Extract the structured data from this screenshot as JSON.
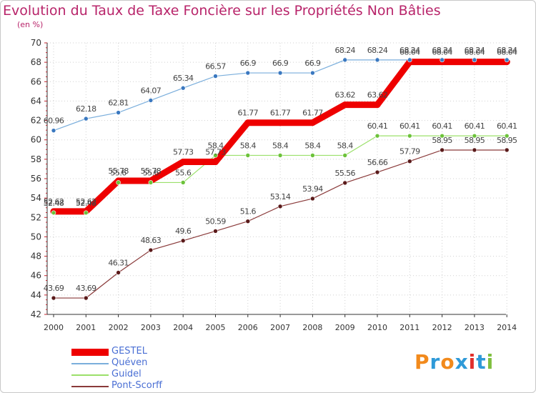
{
  "title": "Evolution du Taux de Taxe Foncière sur les Propriétés Non Bâties",
  "unit": "(en %)",
  "logo": {
    "text": "Proxiti",
    "letters": [
      "P",
      "r",
      "o",
      "x",
      "i",
      "t",
      "i"
    ],
    "colors": [
      "#f28a1c",
      "#2f9ad8",
      "#f28a1c",
      "#2f9ad8",
      "#e2302c",
      "#2f9ad8",
      "#7fbf3f"
    ]
  },
  "chart_data": {
    "type": "line",
    "title": "Evolution du Taux de Taxe Foncière sur les Propriétés Non Bâties",
    "ylabel": "(en %)",
    "x": [
      "2000",
      "2001",
      "2002",
      "2003",
      "2004",
      "2005",
      "2006",
      "2007",
      "2008",
      "2009",
      "2010",
      "2011",
      "2012",
      "2013",
      "2014"
    ],
    "ylim": [
      42,
      70
    ],
    "yticks": [
      "42",
      "44",
      "46",
      "48",
      "50",
      "52",
      "54",
      "56",
      "58",
      "60",
      "62",
      "64",
      "66",
      "68",
      "70"
    ],
    "series": [
      {
        "name": "GESTEL",
        "color": "#ee0000",
        "thick": true,
        "step": true,
        "values": [
          52.62,
          52.62,
          55.78,
          55.78,
          57.73,
          57.73,
          61.77,
          61.77,
          61.77,
          63.62,
          63.62,
          68.04,
          68.04,
          68.04,
          68.04
        ],
        "labels": [
          "52.62",
          "52.62",
          "55.78",
          "55.78",
          "57.73",
          "57.73",
          "61.77",
          "61.77",
          "61.77",
          "63.62",
          "63.62",
          "68.04",
          "68.04",
          "68.04",
          "68.04"
        ]
      },
      {
        "name": "Quéven",
        "color": "#7aaedc",
        "dot": "#3a78c0",
        "values": [
          60.96,
          62.18,
          62.81,
          64.07,
          65.34,
          66.57,
          66.9,
          66.9,
          66.9,
          68.24,
          68.24,
          68.24,
          68.24,
          68.24,
          68.24
        ],
        "labels": [
          "60.96",
          "62.18",
          "62.81",
          "64.07",
          "65.34",
          "66.57",
          "66.9",
          "66.9",
          "66.9",
          "68.24",
          "68.24",
          "68.24",
          "68.24",
          "68.24",
          "68.24"
        ]
      },
      {
        "name": "Guidel",
        "color": "#9be06a",
        "dot": "#6cc23a",
        "values": [
          52.48,
          52.48,
          55.6,
          55.6,
          55.6,
          58.4,
          58.4,
          58.4,
          58.4,
          58.4,
          60.41,
          60.41,
          60.41,
          60.41,
          60.41
        ],
        "labels": [
          "52.48",
          "52.48",
          "55.6",
          "55.6",
          "55.6",
          "58.4",
          "58.4",
          "58.4",
          "58.4",
          "58.4",
          "60.41",
          "60.41",
          "60.41",
          "60.41",
          "60.41"
        ]
      },
      {
        "name": "Pont-Scorff",
        "color": "#8a3a3a",
        "dot": "#5a1a1a",
        "values": [
          43.69,
          43.69,
          46.31,
          48.63,
          49.6,
          50.59,
          51.6,
          53.14,
          53.94,
          55.56,
          56.66,
          57.79,
          58.95,
          58.95,
          58.95
        ],
        "labels": [
          "43.69",
          "43.69",
          "46.31",
          "48.63",
          "49.6",
          "50.59",
          "51.6",
          "53.14",
          "53.94",
          "55.56",
          "56.66",
          "57.79",
          "58.95",
          "58.95",
          "58.95"
        ]
      }
    ]
  }
}
